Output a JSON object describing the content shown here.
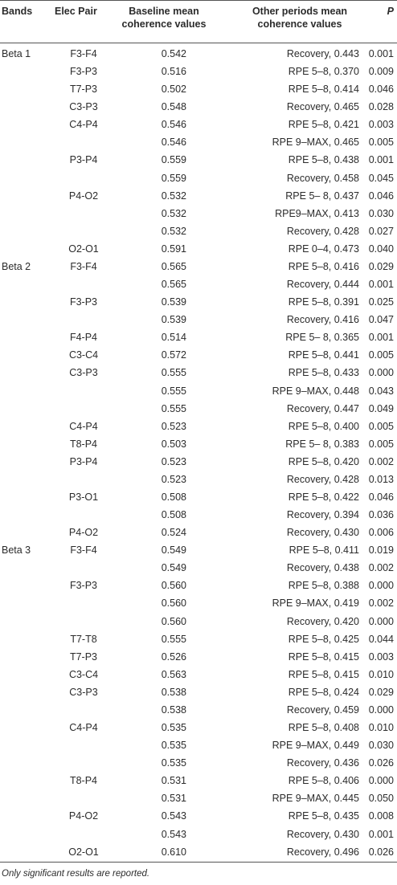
{
  "table": {
    "header": [
      "Bands",
      "Elec Pair",
      "Baseline mean coherence values",
      "Other periods mean coherence values",
      "P"
    ],
    "rows": [
      [
        "Beta 1",
        "F3-F4",
        "0.542",
        "Recovery, 0.443",
        "0.001"
      ],
      [
        null,
        "F3-P3",
        "0.516",
        "RPE 5–8, 0.370",
        "0.009"
      ],
      [
        null,
        "T7-P3",
        "0.502",
        "RPE 5–8, 0.414",
        "0.046"
      ],
      [
        null,
        "C3-P3",
        "0.548",
        "Recovery, 0.465",
        "0.028"
      ],
      [
        null,
        "C4-P4",
        "0.546",
        "RPE 5–8, 0.421",
        "0.003"
      ],
      [
        null,
        null,
        "0.546",
        "RPE 9–MAX, 0.465",
        "0.005"
      ],
      [
        null,
        "P3-P4",
        "0.559",
        "RPE 5–8, 0.438",
        "0.001"
      ],
      [
        null,
        null,
        "0.559",
        "Recovery, 0.458",
        "0.045"
      ],
      [
        null,
        "P4-O2",
        "0.532",
        "RPE 5– 8, 0.437",
        "0.046"
      ],
      [
        null,
        null,
        "0.532",
        "RPE9–MAX, 0.413",
        "0.030"
      ],
      [
        null,
        null,
        "0.532",
        "Recovery, 0.428",
        "0.027"
      ],
      [
        null,
        "O2-O1",
        "0.591",
        "RPE 0–4, 0.473",
        "0.040"
      ],
      [
        "Beta 2",
        "F3-F4",
        "0.565",
        "RPE 5–8, 0.416",
        "0.029"
      ],
      [
        null,
        null,
        "0.565",
        "Recovery, 0.444",
        "0.001"
      ],
      [
        null,
        "F3-P3",
        "0.539",
        "RPE 5–8, 0.391",
        "0.025"
      ],
      [
        null,
        null,
        "0.539",
        "Recovery, 0.416",
        "0.047"
      ],
      [
        null,
        "F4-P4",
        "0.514",
        "RPE 5– 8, 0.365",
        "0.001"
      ],
      [
        null,
        "C3-C4",
        "0.572",
        "RPE 5–8, 0.441",
        "0.005"
      ],
      [
        null,
        "C3-P3",
        "0.555",
        "RPE 5–8, 0.433",
        "0.000"
      ],
      [
        null,
        null,
        "0.555",
        "RPE 9–MAX, 0.448",
        "0.043"
      ],
      [
        null,
        null,
        "0.555",
        "Recovery, 0.447",
        "0.049"
      ],
      [
        null,
        "C4-P4",
        "0.523",
        "RPE 5–8, 0.400",
        "0.005"
      ],
      [
        null,
        "T8-P4",
        "0.503",
        "RPE 5– 8, 0.383",
        "0.005"
      ],
      [
        null,
        "P3-P4",
        "0.523",
        "RPE 5–8, 0.420",
        "0.002"
      ],
      [
        null,
        null,
        "0.523",
        "Recovery, 0.428",
        "0.013"
      ],
      [
        null,
        "P3-O1",
        "0.508",
        "RPE 5–8, 0.422",
        "0.046"
      ],
      [
        null,
        null,
        "0.508",
        "Recovery, 0.394",
        "0.036"
      ],
      [
        null,
        "P4-O2",
        "0.524",
        "Recovery, 0.430",
        "0.006"
      ],
      [
        "Beta 3",
        "F3-F4",
        "0.549",
        "RPE 5–8, 0.411",
        "0.019"
      ],
      [
        null,
        null,
        "0.549",
        "Recovery, 0.438",
        "0.002"
      ],
      [
        null,
        "F3-P3",
        "0.560",
        "RPE 5–8, 0.388",
        "0.000"
      ],
      [
        null,
        null,
        "0.560",
        "RPE 9–MAX, 0.419",
        "0.002"
      ],
      [
        null,
        null,
        "0.560",
        "Recovery, 0.420",
        "0.000"
      ],
      [
        null,
        "T7-T8",
        "0.555",
        "RPE 5–8, 0.425",
        "0.044"
      ],
      [
        null,
        "T7-P3",
        "0.526",
        "RPE 5–8, 0.415",
        "0.003"
      ],
      [
        null,
        "C3-C4",
        "0.563",
        "RPE 5–8, 0.415",
        "0.010"
      ],
      [
        null,
        "C3-P3",
        "0.538",
        "RPE 5–8, 0.424",
        "0.029"
      ],
      [
        null,
        null,
        "0.538",
        "Recovery, 0.459",
        "0.000"
      ],
      [
        null,
        "C4-P4",
        "0.535",
        "RPE 5–8, 0.408",
        "0.010"
      ],
      [
        null,
        null,
        "0.535",
        "RPE 9–MAX, 0.449",
        "0.030"
      ],
      [
        null,
        null,
        "0.535",
        "Recovery, 0.436",
        "0.026"
      ],
      [
        null,
        "T8-P4",
        "0.531",
        "RPE 5–8, 0.406",
        "0.000"
      ],
      [
        null,
        null,
        "0.531",
        "RPE 9–MAX, 0.445",
        "0.050"
      ],
      [
        null,
        "P4-O2",
        "0.543",
        "RPE 5–8, 0.435",
        "0.008"
      ],
      [
        null,
        null,
        "0.543",
        "Recovery, 0.430",
        "0.001"
      ],
      [
        null,
        "O2-O1",
        "0.610",
        "Recovery, 0.496",
        "0.026"
      ]
    ],
    "footnote": "Only significant results are reported."
  }
}
